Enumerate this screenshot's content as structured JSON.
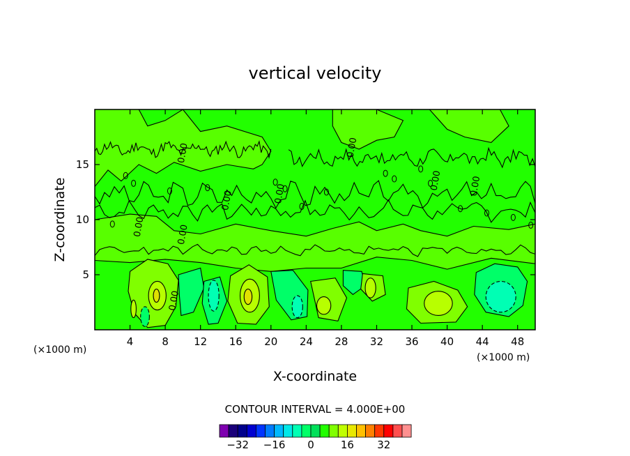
{
  "chart_data": {
    "type": "contour",
    "title": "vertical velocity",
    "xlabel": "X-coordinate",
    "ylabel": "Z-coordinate",
    "x_unit": "(×1000 m)",
    "z_unit": "(×1000 m)",
    "xlim": [
      0,
      50
    ],
    "ylim": [
      0,
      20
    ],
    "x_ticks": [
      4,
      8,
      12,
      16,
      20,
      24,
      28,
      32,
      36,
      40,
      44,
      48
    ],
    "y_ticks": [
      5,
      10,
      15
    ],
    "contour_interval_text": "CONTOUR INTERVAL = 4.000E+00",
    "contour_labels": [
      {
        "text": "0.00",
        "x": 10.3,
        "y": 16.0
      },
      {
        "text": "0.00",
        "x": 15.3,
        "y": 11.7
      },
      {
        "text": "0.00",
        "x": 5.3,
        "y": 9.3
      },
      {
        "text": "0.00",
        "x": 10.3,
        "y": 8.6
      },
      {
        "text": "0.00",
        "x": 21.3,
        "y": 12.3
      },
      {
        "text": "0.00",
        "x": 29.5,
        "y": 16.5
      },
      {
        "text": "0.00",
        "x": 39.0,
        "y": 13.5
      },
      {
        "text": "0.00",
        "x": 43.5,
        "y": 13.0
      },
      {
        "text": "0.00",
        "x": 9.3,
        "y": 2.6
      }
    ],
    "features": [
      {
        "kind": "updraft",
        "x": 7.0,
        "z": 3.5,
        "peak": 8
      },
      {
        "kind": "downdraft",
        "x": 10.5,
        "z": 3.7,
        "peak": -4
      },
      {
        "kind": "downdraft",
        "x": 13.5,
        "z": 3.2,
        "peak": -8
      },
      {
        "kind": "updraft",
        "x": 17.5,
        "z": 3.3,
        "peak": 8
      },
      {
        "kind": "downdraft",
        "x": 23.0,
        "z": 2.5,
        "peak": -8
      },
      {
        "kind": "updraft",
        "x": 26.0,
        "z": 2.4,
        "peak": 4
      },
      {
        "kind": "downdraft",
        "x": 29.0,
        "z": 4.2,
        "peak": -4
      },
      {
        "kind": "updraft",
        "x": 31.3,
        "z": 4.0,
        "peak": 4
      },
      {
        "kind": "updraft",
        "x": 38.5,
        "z": 2.6,
        "peak": 4
      },
      {
        "kind": "downdraft",
        "x": 46.0,
        "z": 3.2,
        "peak": -8
      }
    ],
    "colorbar": {
      "ticks": [
        "−32",
        "−16",
        "0",
        "16",
        "32"
      ],
      "colors": [
        "#7e00b0",
        "#1a007a",
        "#00008c",
        "#0000d0",
        "#0034ff",
        "#007cff",
        "#00b8ff",
        "#00e8e8",
        "#00ffb4",
        "#00ff68",
        "#00e05a",
        "#22ff00",
        "#80ff00",
        "#c0ff00",
        "#e8e800",
        "#ffc000",
        "#ff8000",
        "#ff3800",
        "#ff0000",
        "#ff4f4f",
        "#ff9090"
      ]
    }
  }
}
